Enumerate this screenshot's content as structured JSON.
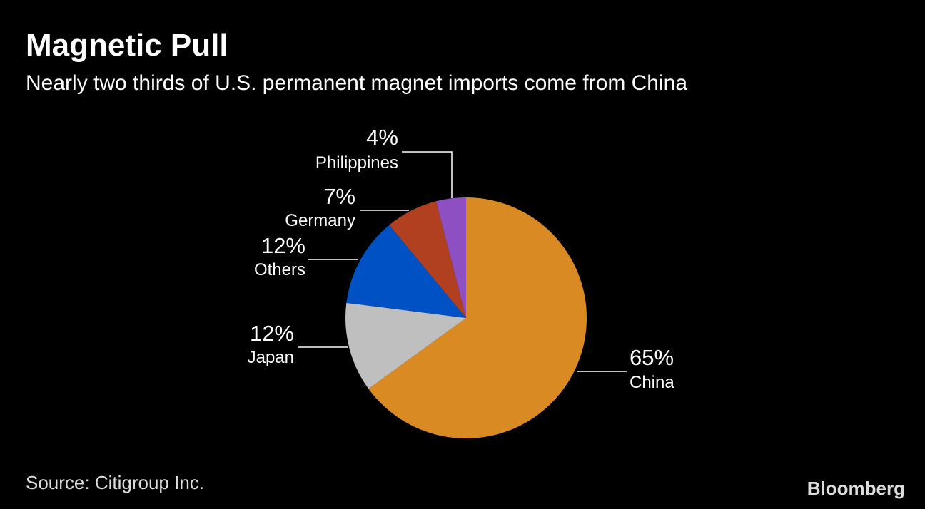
{
  "chart_data": {
    "type": "pie",
    "title": "Magnetic Pull",
    "subtitle": "Nearly two thirds of U.S. permanent magnet imports come from China",
    "categories": [
      "China",
      "Japan",
      "Others",
      "Germany",
      "Philippines"
    ],
    "values": [
      65,
      12,
      12,
      7,
      4
    ],
    "value_labels": [
      "65%",
      "12%",
      "12%",
      "7%",
      "4%"
    ],
    "colors": [
      "#d98a22",
      "#bfbfbf",
      "#0052c4",
      "#b0401f",
      "#8d4fc2"
    ],
    "source": "Source: Citigroup Inc.",
    "brand": "Bloomberg"
  }
}
